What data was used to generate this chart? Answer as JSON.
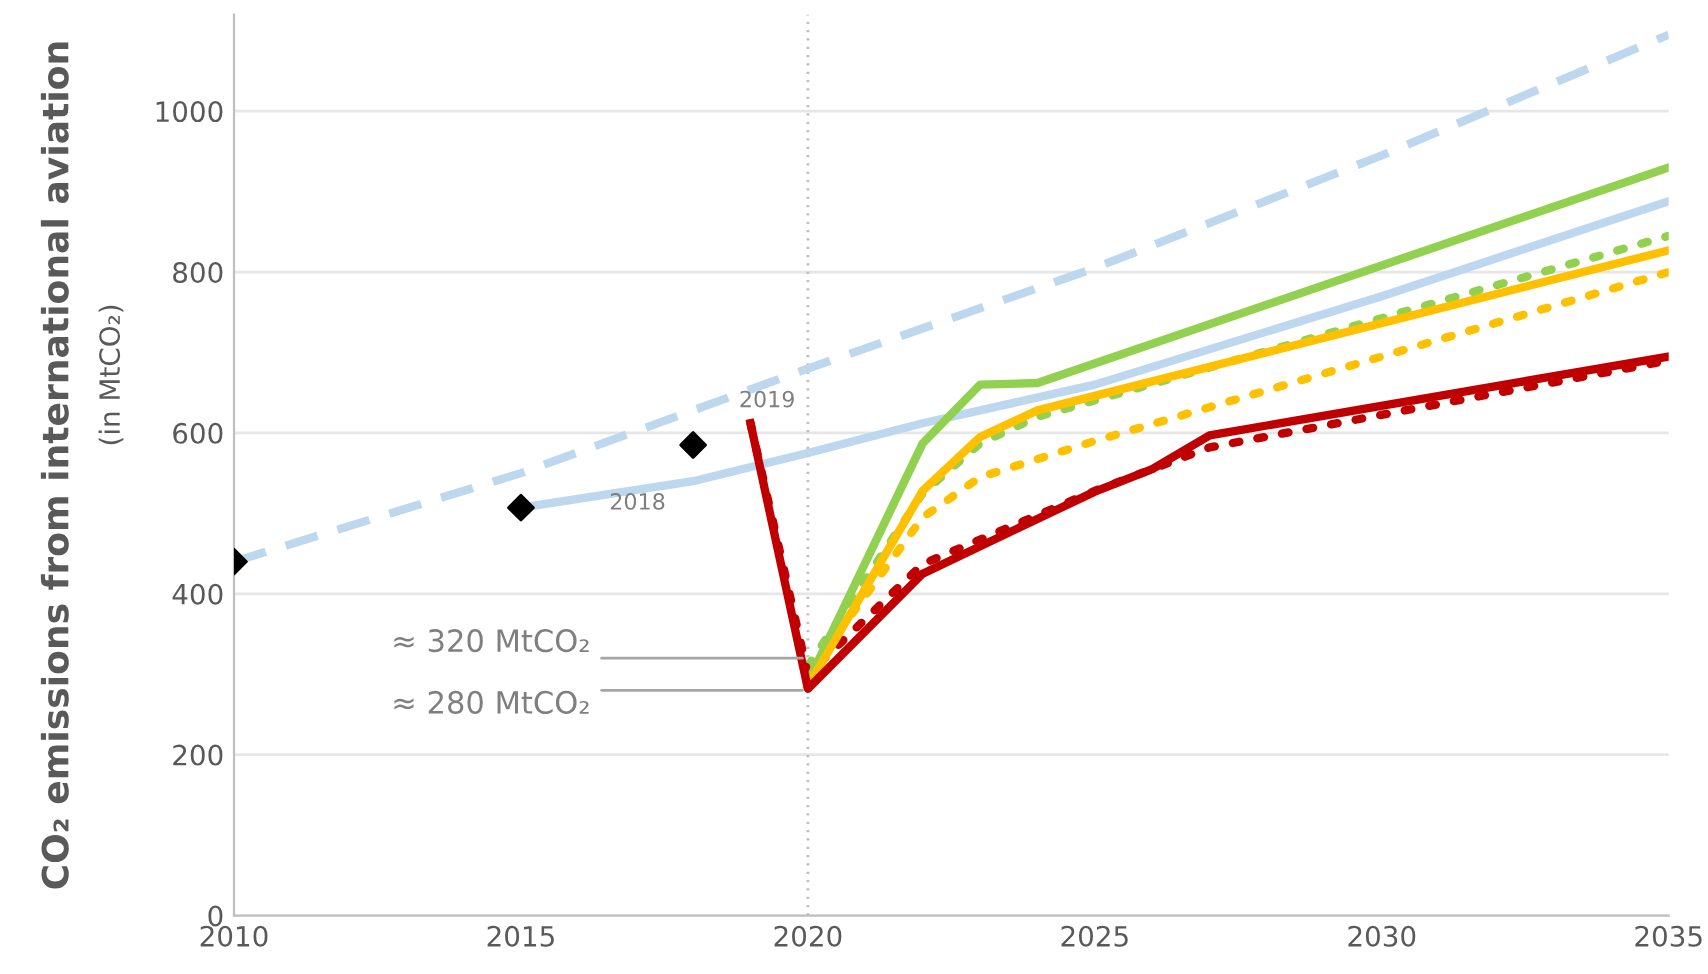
{
  "chart_data": {
    "type": "line",
    "ylabel": "CO₂ emissions from international aviation",
    "xlim": [
      2010,
      2035
    ],
    "xticks": [
      2010,
      2015,
      2020,
      2025,
      2030,
      2035
    ],
    "ylim": [
      0,
      1120
    ],
    "yticks": [
      0,
      200,
      400,
      600,
      800,
      1000
    ],
    "grid": "y",
    "legend": false,
    "series": [
      {
        "color": "#bdd7ee",
        "line_style": "dashed",
        "x": [
          2010,
          2015,
          2020,
          2025,
          2030,
          2035
        ],
        "values": [
          440,
          550,
          680,
          805,
          945,
          1095
        ]
      },
      {
        "color": "#bdd7ee",
        "line_style": "solid",
        "x": [
          2015,
          2018,
          2020,
          2022,
          2025,
          2030,
          2035
        ],
        "values": [
          507,
          540,
          575,
          612,
          660,
          770,
          888
        ]
      },
      {
        "color": "#92d050",
        "line_style": "dotted",
        "x": [
          2020,
          2022,
          2023,
          2024,
          2035
        ],
        "values": [
          310,
          525,
          587,
          620,
          845
        ]
      },
      {
        "color": "#ffc000",
        "line_style": "dotted",
        "x": [
          2020,
          2022,
          2023,
          2025,
          2035
        ],
        "values": [
          300,
          495,
          545,
          590,
          800
        ]
      },
      {
        "color": "#c00000",
        "line_style": "dotted",
        "x": [
          2019,
          2020,
          2022,
          2025,
          2027,
          2035
        ],
        "values": [
          612,
          300,
          437,
          528,
          582,
          690
        ]
      },
      {
        "color": "#92d050",
        "line_style": "solid",
        "x": [
          2020,
          2022,
          2023,
          2024,
          2035
        ],
        "values": [
          290,
          587,
          660,
          662,
          930
        ]
      },
      {
        "color": "#ffc000",
        "line_style": "solid",
        "x": [
          2020,
          2022,
          2023,
          2024,
          2025,
          2035
        ],
        "values": [
          285,
          528,
          595,
          628,
          646,
          827
        ]
      },
      {
        "color": "#c00000",
        "line_style": "solid",
        "x": [
          2019,
          2020,
          2022,
          2025,
          2026,
          2027,
          2035
        ],
        "values": [
          612,
          282,
          425,
          527,
          555,
          597,
          695
        ]
      },
      {
        "type": "scatter",
        "color": "#000000",
        "marker": "diamond",
        "x": [
          2010,
          2015,
          2018
        ],
        "values": [
          440,
          507,
          585
        ]
      }
    ],
    "ref_lines": [
      {
        "axis": "x",
        "value": 2020,
        "color": "#bfbfbf",
        "line_style": "dotted"
      }
    ],
    "annotations": [
      "(in MtCO₂)",
      {
        "text": "2018",
        "x": 2018,
        "y": 540
      },
      {
        "text": "2019",
        "x": 2019,
        "y": 612
      },
      {
        "text": "≈ 320 MtCO₂",
        "x": 2020,
        "y": 320
      },
      {
        "text": "≈ 280 MtCO₂",
        "x": 2020,
        "y": 280
      }
    ]
  }
}
